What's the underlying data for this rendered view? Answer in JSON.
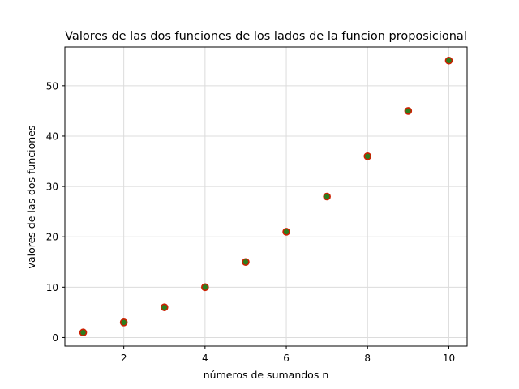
{
  "chart_data": {
    "type": "scatter",
    "title": "Valores de las dos funciones de los lados de la funcion proposicional",
    "xlabel": "números de sumandos n",
    "ylabel": "valores de las dos funciones",
    "xlim": [
      0.55,
      10.45
    ],
    "ylim": [
      -1.7,
      57.7
    ],
    "xticks": [
      2,
      4,
      6,
      8,
      10
    ],
    "yticks": [
      0,
      10,
      20,
      30,
      40,
      50
    ],
    "grid": true,
    "series": [
      {
        "x": [
          1,
          2,
          3,
          4,
          5,
          6,
          7,
          8,
          9,
          10
        ],
        "values": [
          1,
          3,
          6,
          10,
          15,
          21,
          28,
          36,
          45,
          55
        ],
        "marker_fill": "#2e7d1e",
        "marker_edge": "#cc1f00"
      }
    ]
  }
}
